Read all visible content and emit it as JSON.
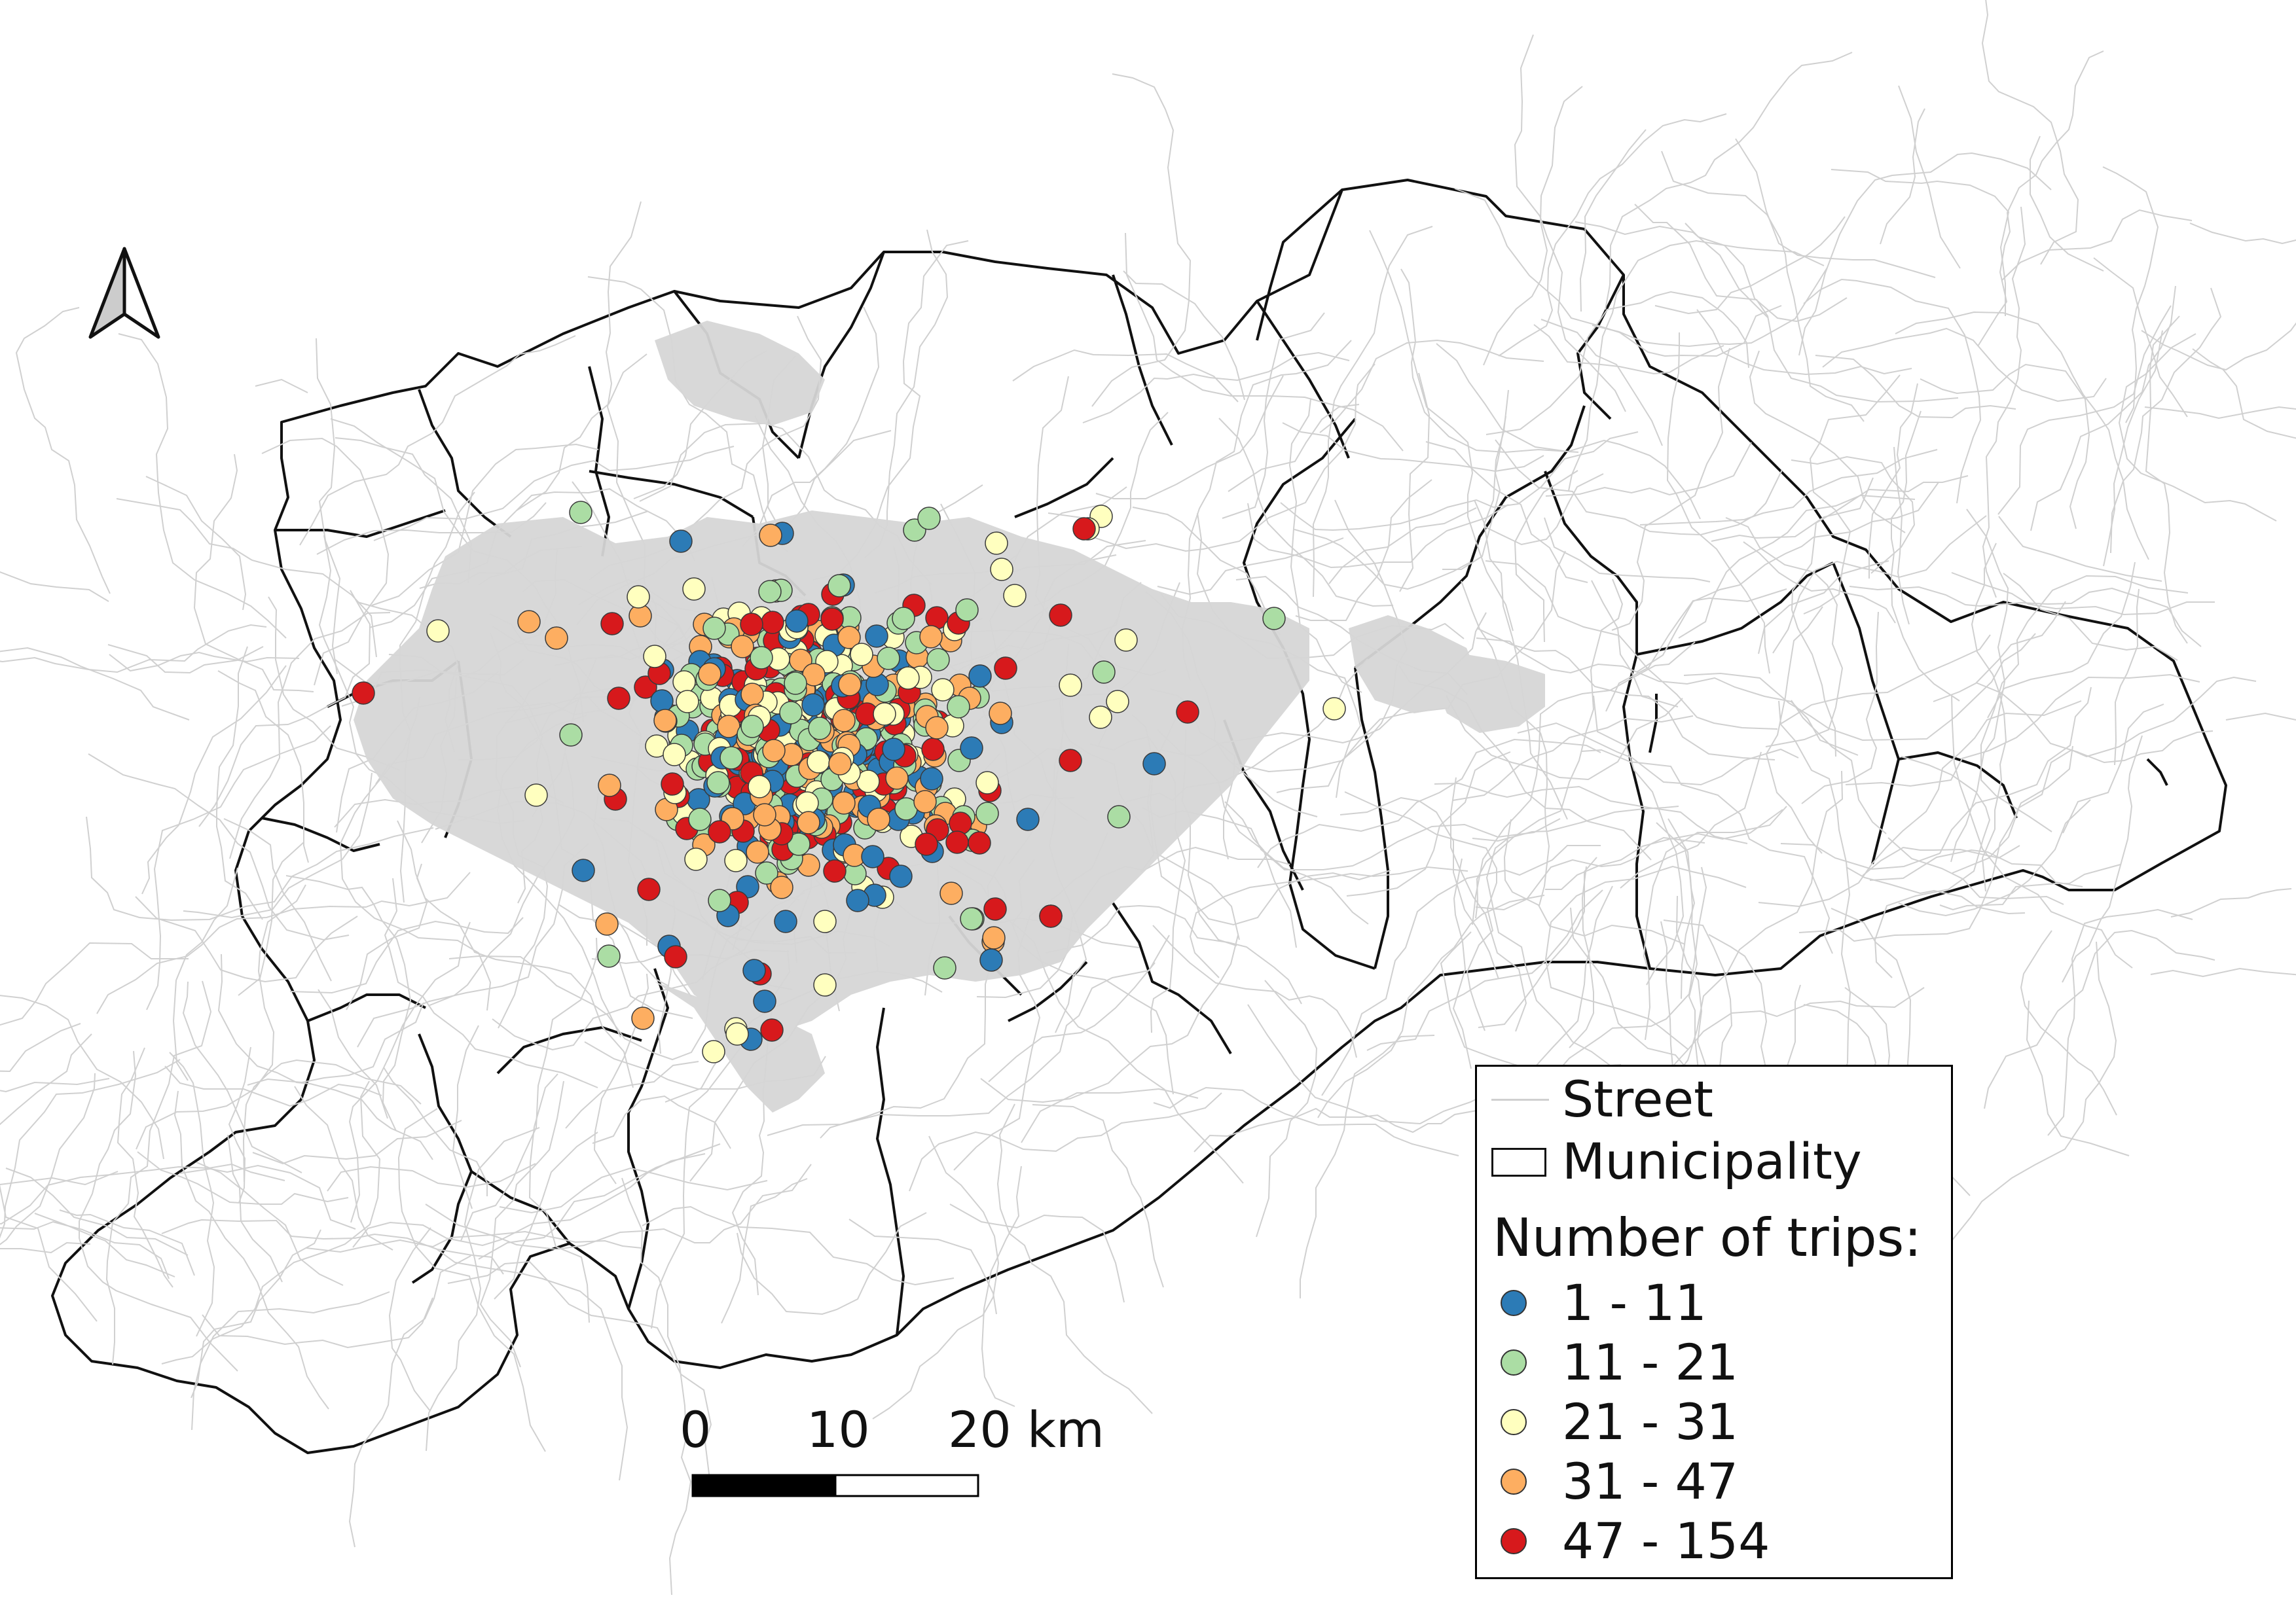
{
  "legend": {
    "street_label": "Street",
    "municipality_label": "Municipality",
    "heading": "Number of trips:",
    "classes": [
      {
        "label": "1 - 11",
        "color": "#2c7bb6"
      },
      {
        "label": "11 - 21",
        "color": "#abdda4"
      },
      {
        "label": "21 - 31",
        "color": "#ffffbf"
      },
      {
        "label": "31 - 47",
        "color": "#fdae61"
      },
      {
        "label": "47 - 154",
        "color": "#d7191c"
      }
    ]
  },
  "scalebar": {
    "tick_0": "0",
    "tick_1": "10",
    "tick_2": "20 km"
  },
  "north_arrow": "north-arrow-icon",
  "colors": {
    "street": "#d0d0d0",
    "boundary": "#111111",
    "urban": "#d4d4d4"
  }
}
